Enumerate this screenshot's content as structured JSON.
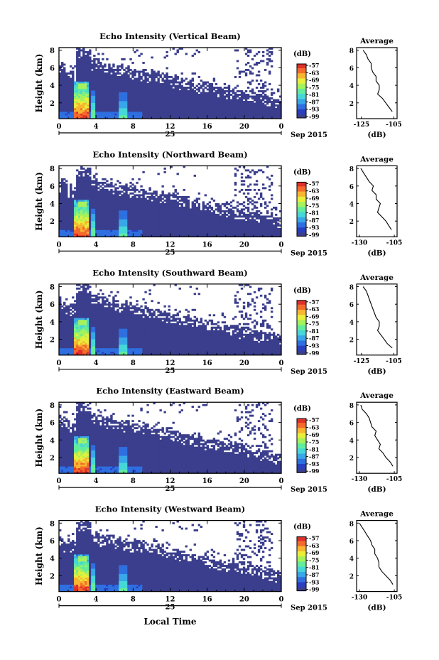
{
  "figure": {
    "x_axis_label": "Local Time",
    "x_tick_labels": [
      "0",
      "4",
      "8",
      "12",
      "16",
      "20",
      "0"
    ],
    "date_day": "25",
    "date_month_year": "Sep 2015",
    "y_axis_label": "Height (km)",
    "y_tick_labels": [
      "2",
      "4",
      "6",
      "8"
    ],
    "colorbar_unit": "(dB)",
    "colorbar_ticks": [
      "-57",
      "-63",
      "-69",
      "-75",
      "-81",
      "-87",
      "-93",
      "-99"
    ],
    "colors": {
      "no_data": "#ffffff",
      "colormap": [
        "#3a3e8c",
        "#2a3fc0",
        "#2f6fe0",
        "#39a7e8",
        "#46d7d8",
        "#63ec9c",
        "#a6f25c",
        "#e8ef3a",
        "#f8b530",
        "#f36a2c",
        "#e0302a"
      ]
    }
  },
  "chart_data": [
    {
      "type": "heatmap",
      "title": "Echo Intensity (Vertical Beam)",
      "xlabel": "Local Time",
      "ylabel": "Height (km)",
      "xlim": [
        0,
        24
      ],
      "ylim": [
        0.2,
        8.3
      ],
      "x_unit": "hours, 25 Sep 2015",
      "value_unit": "dB",
      "colorbar_range": [
        -99,
        -57
      ],
      "profile": {
        "title": "Average",
        "xlabel": "(dB)",
        "x_tick_labels": [
          "-125",
          "-105"
        ],
        "xlim": [
          -128,
          -103
        ],
        "height_km": [
          1.0,
          1.5,
          2.0,
          2.5,
          3.0,
          3.5,
          4.0,
          4.5,
          5.0,
          5.5,
          6.0,
          6.5,
          7.0,
          7.5,
          8.0
        ],
        "mean_db": [
          -106,
          -108,
          -110,
          -112,
          -115,
          -114,
          -114,
          -116,
          -116,
          -118,
          -119,
          -119,
          -121,
          -122,
          -124
        ]
      }
    },
    {
      "type": "heatmap",
      "title": "Echo Intensity (Northward Beam)",
      "xlabel": "Local Time",
      "ylabel": "Height (km)",
      "xlim": [
        0,
        24
      ],
      "ylim": [
        0.2,
        8.3
      ],
      "x_unit": "hours, 25 Sep 2015",
      "value_unit": "dB",
      "colorbar_range": [
        -99,
        -57
      ],
      "profile": {
        "title": "Average",
        "xlabel": "(dB)",
        "x_tick_labels": [
          "-130",
          "-105"
        ],
        "xlim": [
          -132,
          -103
        ],
        "height_km": [
          1.0,
          1.5,
          2.0,
          2.5,
          3.0,
          3.5,
          4.0,
          4.5,
          5.0,
          5.5,
          6.0,
          6.5,
          7.0,
          7.5,
          8.0
        ],
        "mean_db": [
          -107,
          -109,
          -111,
          -114,
          -117,
          -116,
          -115,
          -118,
          -118,
          -121,
          -120,
          -123,
          -125,
          -127,
          -129
        ]
      }
    },
    {
      "type": "heatmap",
      "title": "Echo Intensity (Southward Beam)",
      "xlabel": "Local Time",
      "ylabel": "Height (km)",
      "xlim": [
        0,
        24
      ],
      "ylim": [
        0.2,
        8.3
      ],
      "x_unit": "hours, 25 Sep 2015",
      "value_unit": "dB",
      "colorbar_range": [
        -99,
        -57
      ],
      "profile": {
        "title": "Average",
        "xlabel": "(dB)",
        "x_tick_labels": [
          "-125",
          "-105"
        ],
        "xlim": [
          -128,
          -103
        ],
        "height_km": [
          1.0,
          1.5,
          2.0,
          2.5,
          3.0,
          3.5,
          4.0,
          4.5,
          5.0,
          5.5,
          6.0,
          6.5,
          7.0,
          7.5,
          8.0
        ],
        "mean_db": [
          -106,
          -109,
          -111,
          -113,
          -115,
          -114,
          -114,
          -116,
          -117,
          -118,
          -119,
          -120,
          -121,
          -122,
          -124
        ]
      }
    },
    {
      "type": "heatmap",
      "title": "Echo Intensity (Eastward Beam)",
      "xlabel": "Local Time",
      "ylabel": "Height (km)",
      "xlim": [
        0,
        24
      ],
      "ylim": [
        0.2,
        8.3
      ],
      "x_unit": "hours, 25 Sep 2015",
      "value_unit": "dB",
      "colorbar_range": [
        -99,
        -57
      ],
      "profile": {
        "title": "Average",
        "xlabel": "(dB)",
        "x_tick_labels": [
          "-130",
          "-105"
        ],
        "xlim": [
          -132,
          -103
        ],
        "height_km": [
          1.0,
          1.5,
          2.0,
          2.5,
          3.0,
          3.5,
          4.0,
          4.5,
          5.0,
          5.5,
          6.0,
          6.5,
          7.0,
          7.5,
          8.0
        ],
        "mean_db": [
          -106,
          -108,
          -111,
          -113,
          -116,
          -115,
          -117,
          -119,
          -118,
          -121,
          -122,
          -123,
          -125,
          -128,
          -129
        ]
      }
    },
    {
      "type": "heatmap",
      "title": "Echo Intensity (Westward Beam)",
      "xlabel": "Local Time",
      "ylabel": "Height (km)",
      "xlim": [
        0,
        24
      ],
      "ylim": [
        0.2,
        8.3
      ],
      "x_unit": "hours, 25 Sep 2015",
      "value_unit": "dB",
      "colorbar_range": [
        -99,
        -57
      ],
      "profile": {
        "title": "Average",
        "xlabel": "(dB)",
        "x_tick_labels": [
          "-130",
          "-105"
        ],
        "xlim": [
          -132,
          -103
        ],
        "height_km": [
          1.0,
          1.5,
          2.0,
          2.5,
          3.0,
          3.5,
          4.0,
          4.5,
          5.0,
          5.5,
          6.0,
          6.5,
          7.0,
          7.5,
          8.0
        ],
        "mean_db": [
          -106,
          -108,
          -111,
          -114,
          -116,
          -116,
          -117,
          -119,
          -119,
          -121,
          -122,
          -124,
          -126,
          -128,
          -130
        ]
      }
    }
  ]
}
